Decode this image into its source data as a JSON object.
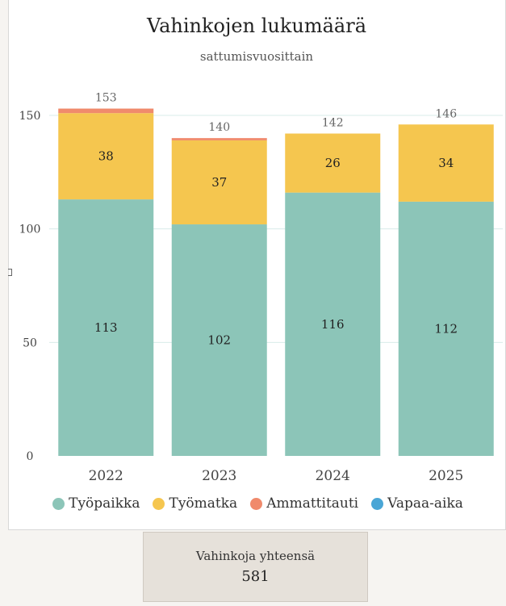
{
  "chart_data": {
    "type": "bar",
    "stacked": true,
    "title": "Vahinkojen lukumäärä",
    "subtitle": "sattumisvuosittain",
    "categories": [
      "2022",
      "2023",
      "2024",
      "2025"
    ],
    "series": [
      {
        "name": "Työpaikka",
        "values": [
          113,
          102,
          116,
          112
        ],
        "color": "#8cc5b8"
      },
      {
        "name": "Työmatka",
        "values": [
          38,
          37,
          26,
          34
        ],
        "color": "#f5c64f"
      },
      {
        "name": "Ammattitauti",
        "values": [
          2,
          1,
          0,
          0
        ],
        "color": "#f08a6c"
      },
      {
        "name": "Vapaa-aika",
        "values": [
          0,
          0,
          0,
          0
        ],
        "color": "#4aa6d6"
      }
    ],
    "totals": [
      "153",
      "140",
      "142",
      "146"
    ],
    "yticks": [
      "0",
      "50",
      "100",
      "150"
    ],
    "ylim": [
      0,
      150
    ],
    "grid": true,
    "legend_position": "bottom"
  },
  "summary": {
    "label": "Vahinkoja yhteensä",
    "value": "581"
  }
}
